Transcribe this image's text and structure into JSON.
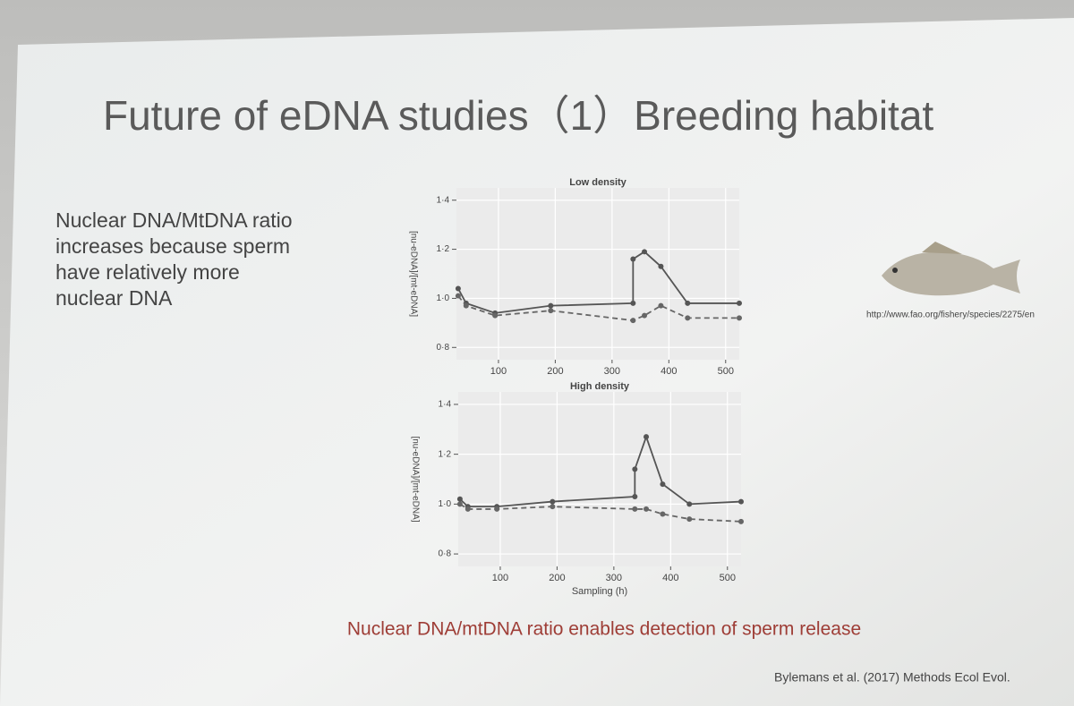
{
  "slide": {
    "title": "Future of eDNA studies（1）Breeding habitat",
    "bullet_lines": [
      "Nuclear DNA/MtDNA ratio",
      "increases because sperm",
      "have relatively more",
      "nuclear DNA"
    ],
    "image_credit": "http://www.fao.org/fishery/species/2275/en",
    "caption": "Nuclear DNA/mtDNA ratio enables detection of sperm release",
    "citation": "Bylemans et al. (2017) Methods Ecol Evol."
  },
  "chart_data": [
    {
      "type": "line",
      "title": "Low density",
      "y_label": "[nu-eDNA]/[mt-eDNA]",
      "xlim": [
        26,
        524
      ],
      "xticks": [
        100,
        200,
        300,
        400,
        500
      ],
      "ylim": [
        0.75,
        1.45
      ],
      "yticks": [
        {
          "value": 0.8,
          "label": "0·8"
        },
        {
          "value": 1.0,
          "label": "1·0"
        },
        {
          "value": 1.2,
          "label": "1·2"
        },
        {
          "value": 1.4,
          "label": "1·4"
        }
      ],
      "grid": true,
      "series": [
        {
          "color": "#555555",
          "dashed": false,
          "x": [
            29,
            43,
            94,
            192,
            337,
            337,
            357,
            386,
            433,
            524
          ],
          "values": [
            1.04,
            0.98,
            0.94,
            0.97,
            0.98,
            1.16,
            1.19,
            1.13,
            0.98,
            0.98
          ]
        },
        {
          "color": "#666666",
          "dashed": true,
          "x": [
            29,
            43,
            94,
            192,
            337,
            357,
            386,
            433,
            524
          ],
          "values": [
            1.01,
            0.97,
            0.93,
            0.95,
            0.91,
            0.93,
            0.97,
            0.92,
            0.92
          ]
        }
      ]
    },
    {
      "type": "line",
      "title": "High density",
      "y_label": "[nu-eDNA]/[mt-eDNA]",
      "x_label": "Sampling (h)",
      "xlim": [
        26,
        524
      ],
      "xticks": [
        100,
        200,
        300,
        400,
        500
      ],
      "ylim": [
        0.75,
        1.45
      ],
      "yticks": [
        {
          "value": 0.8,
          "label": "0·8"
        },
        {
          "value": 1.0,
          "label": "1·0"
        },
        {
          "value": 1.2,
          "label": "1·2"
        },
        {
          "value": 1.4,
          "label": "1·4"
        }
      ],
      "grid": true,
      "series": [
        {
          "color": "#555555",
          "dashed": false,
          "x": [
            29,
            43,
            94,
            192,
            337,
            337,
            357,
            386,
            433,
            524
          ],
          "values": [
            1.02,
            0.99,
            0.99,
            1.01,
            1.03,
            1.14,
            1.27,
            1.08,
            1.0,
            1.01
          ]
        },
        {
          "color": "#666666",
          "dashed": true,
          "x": [
            29,
            43,
            94,
            192,
            337,
            357,
            386,
            433,
            524
          ],
          "values": [
            1.0,
            0.98,
            0.98,
            0.99,
            0.98,
            0.98,
            0.96,
            0.94,
            0.93
          ]
        }
      ]
    }
  ]
}
